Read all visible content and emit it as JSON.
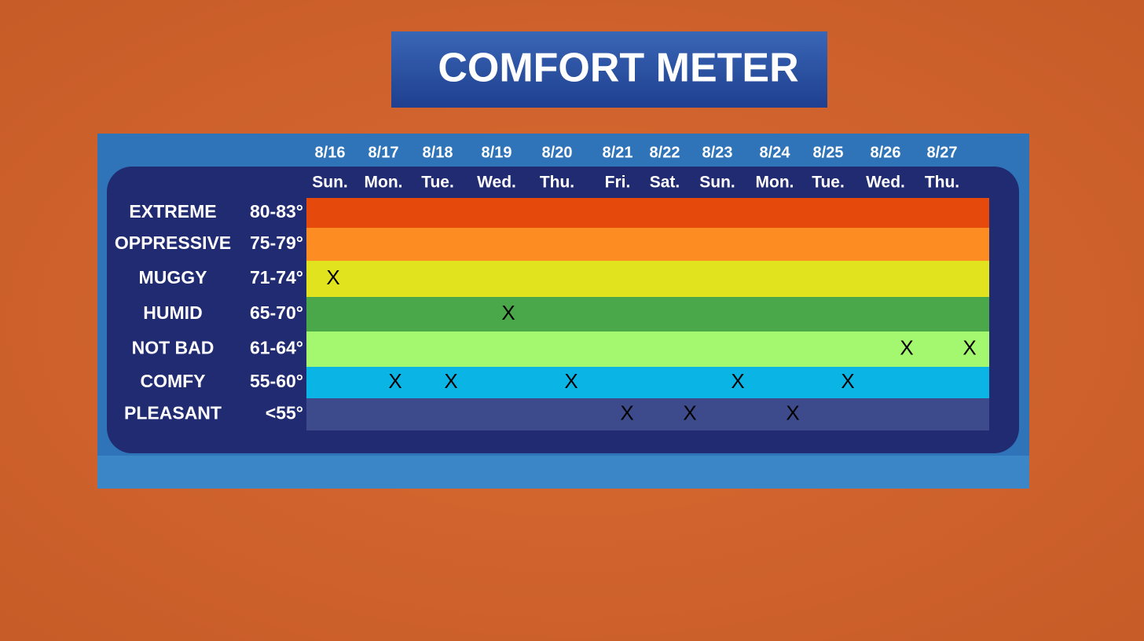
{
  "title": "COMFORT METER",
  "marker": "X",
  "levels": [
    {
      "name": "EXTREME",
      "range": "80-83°",
      "color": "#e6490c"
    },
    {
      "name": "OPPRESSIVE",
      "range": "75-79°",
      "color": "#fd8c22"
    },
    {
      "name": "MUGGY",
      "range": "71-74°",
      "color": "#e2e31f"
    },
    {
      "name": "HUMID",
      "range": "65-70°",
      "color": "#4aa84a"
    },
    {
      "name": "NOT BAD",
      "range": "61-64°",
      "color": "#a3f870"
    },
    {
      "name": "COMFY",
      "range": "55-60°",
      "color": "#0ab5e5"
    },
    {
      "name": "PLEASANT",
      "range": "<55°",
      "color": "#3d4b8c"
    }
  ],
  "days": [
    {
      "date": "8/16",
      "weekday": "Sun.",
      "level": "MUGGY"
    },
    {
      "date": "8/17",
      "weekday": "Mon.",
      "level": "COMFY"
    },
    {
      "date": "8/18",
      "weekday": "Tue.",
      "level": "COMFY"
    },
    {
      "date": "8/19",
      "weekday": "Wed.",
      "level": "HUMID"
    },
    {
      "date": "8/20",
      "weekday": "Thu.",
      "level": "COMFY"
    },
    {
      "date": "8/21",
      "weekday": "Fri.",
      "level": "PLEASANT"
    },
    {
      "date": "8/22",
      "weekday": "Sat.",
      "level": "PLEASANT"
    },
    {
      "date": "8/23",
      "weekday": "Sun.",
      "level": "COMFY"
    },
    {
      "date": "8/24",
      "weekday": "Mon.",
      "level": "PLEASANT"
    },
    {
      "date": "8/25",
      "weekday": "Tue.",
      "level": "COMFY"
    },
    {
      "date": "8/26",
      "weekday": "Wed.",
      "level": "NOT BAD"
    },
    {
      "date": "8/27",
      "weekday": "Thu.",
      "level": "NOT BAD"
    }
  ]
}
